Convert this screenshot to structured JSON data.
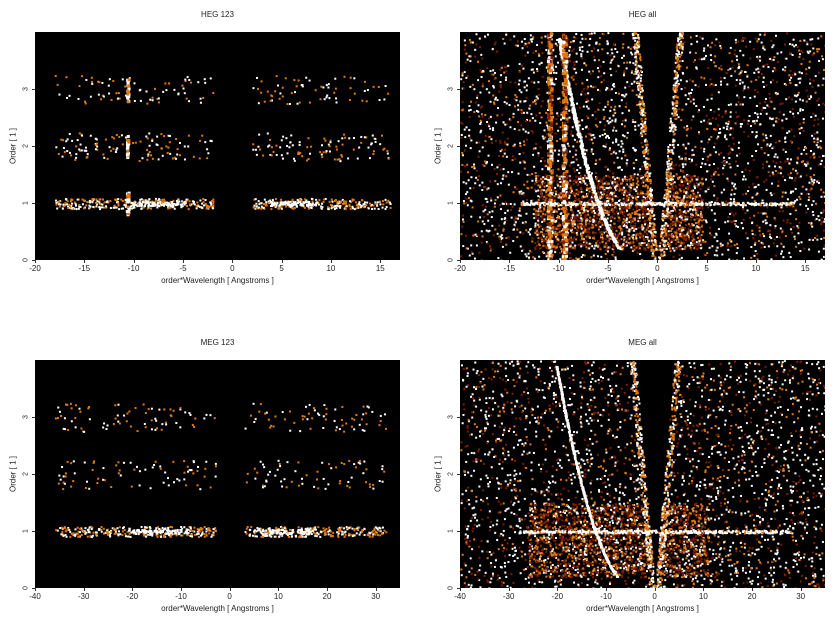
{
  "chart_data": [
    {
      "type": "heatmap",
      "title": "HEG 123",
      "xlabel": "order*Wavelength [ Angstroms ]",
      "ylabel": "Order [ 1 ]",
      "xlim": [
        -20,
        17
      ],
      "ylim": [
        0,
        4
      ],
      "xticks": [
        -20,
        -15,
        -10,
        -5,
        0,
        5,
        10,
        15
      ],
      "yticks": [
        0,
        1,
        2,
        3
      ],
      "colors": {
        "background": "#000000",
        "low": "#7a1e00",
        "mid": "#e07a10",
        "high": "#ffffff"
      },
      "bands": [
        {
          "order": 1,
          "x_ranges": [
            [
              -18,
              -2
            ],
            [
              2,
              16
            ]
          ],
          "density": 0.7
        },
        {
          "order": 2,
          "x_ranges": [
            [
              -18,
              -2
            ],
            [
              2,
              16
            ]
          ],
          "density": 0.3
        },
        {
          "order": 3,
          "x_ranges": [
            [
              -18,
              -2
            ],
            [
              2,
              16
            ]
          ],
          "density": 0.2
        }
      ],
      "features": [
        {
          "x": -10.7,
          "description": "vertical streak"
        }
      ]
    },
    {
      "type": "heatmap",
      "title": "HEG all",
      "xlabel": "order*Wavelength [ Angstroms ]",
      "ylabel": "Order [ 1 ]",
      "xlim": [
        -20,
        17
      ],
      "ylim": [
        0,
        4
      ],
      "xticks": [
        -20,
        -15,
        -10,
        -5,
        0,
        5,
        10,
        15
      ],
      "yticks": [
        0,
        1,
        2,
        3
      ],
      "colors": {
        "background": "#000000",
        "low": "#7a1e00",
        "mid": "#e07a10",
        "high": "#ffffff"
      },
      "features": [
        {
          "x": -11,
          "description": "bright vertical streak"
        },
        {
          "x": -9.5,
          "description": "bright vertical streak"
        },
        {
          "region": [
            [
              -12.5,
              0.2
            ],
            [
              4.5,
              1.5
            ]
          ],
          "description": "dense region"
        },
        {
          "region": [
            [
              -1.5,
              0
            ],
            [
              1.5,
              4
            ]
          ],
          "description": "empty wedge at zero"
        }
      ]
    },
    {
      "type": "heatmap",
      "title": "MEG 123",
      "xlabel": "order*Wavelength [ Angstroms ]",
      "ylabel": "Order [ 1 ]",
      "xlim": [
        -40,
        35
      ],
      "ylim": [
        0,
        4
      ],
      "xticks": [
        -40,
        -30,
        -20,
        -10,
        0,
        10,
        20,
        30
      ],
      "yticks": [
        0,
        1,
        2,
        3
      ],
      "colors": {
        "background": "#000000",
        "low": "#7a1e00",
        "mid": "#e07a10",
        "high": "#ffffff"
      },
      "bands": [
        {
          "order": 1,
          "x_ranges": [
            [
              -36,
              -3
            ],
            [
              3,
              32
            ]
          ],
          "density": 0.7
        },
        {
          "order": 2,
          "x_ranges": [
            [
              -36,
              -3
            ],
            [
              3,
              32
            ]
          ],
          "density": 0.2
        },
        {
          "order": 3,
          "x_ranges": [
            [
              -36,
              -3
            ],
            [
              3,
              32
            ]
          ],
          "density": 0.2
        }
      ]
    },
    {
      "type": "heatmap",
      "title": "MEG all",
      "xlabel": "order*Wavelength [ Angstroms ]",
      "ylabel": "Order [ 1 ]",
      "xlim": [
        -40,
        35
      ],
      "ylim": [
        0,
        4
      ],
      "xticks": [
        -40,
        -30,
        -20,
        -10,
        0,
        10,
        20,
        30
      ],
      "yticks": [
        0,
        1,
        2,
        3
      ],
      "colors": {
        "background": "#000000",
        "low": "#7a1e00",
        "mid": "#e07a10",
        "high": "#ffffff"
      },
      "features": [
        {
          "region": [
            [
              -26,
              0.2
            ],
            [
              11,
              1.5
            ]
          ],
          "description": "dense region"
        },
        {
          "region": [
            [
              -3,
              0
            ],
            [
              3,
              4
            ]
          ],
          "description": "empty wedge at zero"
        }
      ]
    }
  ]
}
